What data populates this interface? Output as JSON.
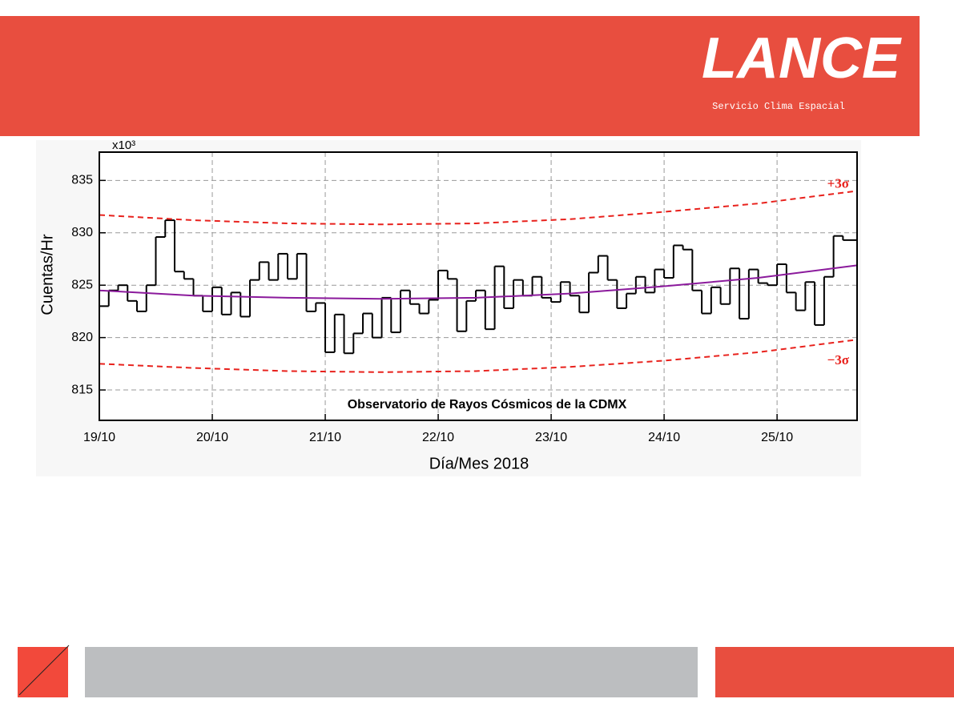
{
  "header": {
    "logo": "LANCE",
    "subtitle": "Servicio Clima Espacial"
  },
  "chart_data": {
    "type": "step",
    "x_label": "Día/Mes 2018",
    "y_label": "Cuentas/Hr",
    "y_multiplier": "x10³",
    "annotation": "Observatorio de Rayos Cósmicos de la CDMX",
    "band_labels": [
      "+3σ",
      "−3σ"
    ],
    "xlim": [
      0,
      161
    ],
    "ylim": [
      812.1,
      837.7
    ],
    "xticks": [
      {
        "value": 0,
        "label": "19/10"
      },
      {
        "value": 24,
        "label": "20/10"
      },
      {
        "value": 48,
        "label": "21/10"
      },
      {
        "value": 72,
        "label": "22/10"
      },
      {
        "value": 96,
        "label": "23/10"
      },
      {
        "value": 120,
        "label": "24/10"
      },
      {
        "value": 144,
        "label": "25/10"
      }
    ],
    "yticks": [
      815,
      820,
      825,
      830,
      835
    ],
    "grid": true,
    "series": [
      {
        "color": "#000000",
        "style": "step",
        "x": [
          0,
          2,
          4,
          6,
          8,
          10,
          12,
          14,
          16,
          18,
          20,
          22,
          24,
          26,
          28,
          30,
          32,
          34,
          36,
          38,
          40,
          42,
          44,
          46,
          48,
          50,
          52,
          54,
          56,
          58,
          60,
          62,
          64,
          66,
          68,
          70,
          72,
          74,
          76,
          78,
          80,
          82,
          84,
          86,
          88,
          90,
          92,
          94,
          96,
          98,
          100,
          102,
          104,
          106,
          108,
          110,
          112,
          114,
          116,
          118,
          120,
          122,
          124,
          126,
          128,
          130,
          132,
          134,
          136,
          138,
          140,
          142,
          144,
          146,
          148,
          150,
          152,
          154,
          156,
          158
        ],
        "values": [
          823,
          824.5,
          825,
          823.5,
          822.5,
          825,
          829.6,
          831.2,
          826.3,
          825.6,
          824,
          822.5,
          824.8,
          822.2,
          824.3,
          822,
          825.5,
          827.2,
          825.5,
          828,
          825.6,
          828,
          822.5,
          823.3,
          818.6,
          822.2,
          818.5,
          820.4,
          822.3,
          820,
          823.8,
          820.5,
          824.5,
          823.2,
          822.3,
          823.6,
          826.4,
          825.6,
          820.6,
          823.5,
          824.5,
          820.8,
          826.8,
          822.8,
          825.5,
          824,
          825.8,
          823.8,
          823.4,
          825.3,
          824,
          822.4,
          826.2,
          827.8,
          825.5,
          822.8,
          824.2,
          825.8,
          824.3,
          826.5,
          825.7,
          828.8,
          828.4,
          824.5,
          822.3,
          824.8,
          823.2,
          826.6,
          821.8,
          826.5,
          825.2,
          825,
          827,
          824.3,
          822.6,
          825.3,
          821.2,
          825.8,
          829.7,
          829.3
        ]
      },
      {
        "color": "#8b1a9c",
        "style": "solid",
        "x": [
          0,
          20,
          40,
          60,
          80,
          100,
          120,
          140,
          161
        ],
        "values": [
          824.5,
          824.0,
          823.8,
          823.7,
          823.8,
          824.2,
          824.9,
          825.7,
          826.9
        ]
      },
      {
        "color": "#e8211c",
        "style": "dashed",
        "x": [
          0,
          20,
          40,
          60,
          80,
          100,
          120,
          140,
          161
        ],
        "values": [
          831.7,
          831.2,
          830.9,
          830.8,
          830.9,
          831.3,
          832,
          832.8,
          834
        ]
      },
      {
        "color": "#e8211c",
        "style": "dashed",
        "x": [
          0,
          20,
          40,
          60,
          80,
          100,
          120,
          140,
          161
        ],
        "values": [
          817.5,
          817.1,
          816.8,
          816.7,
          816.8,
          817.2,
          817.8,
          818.6,
          819.8
        ]
      }
    ]
  }
}
